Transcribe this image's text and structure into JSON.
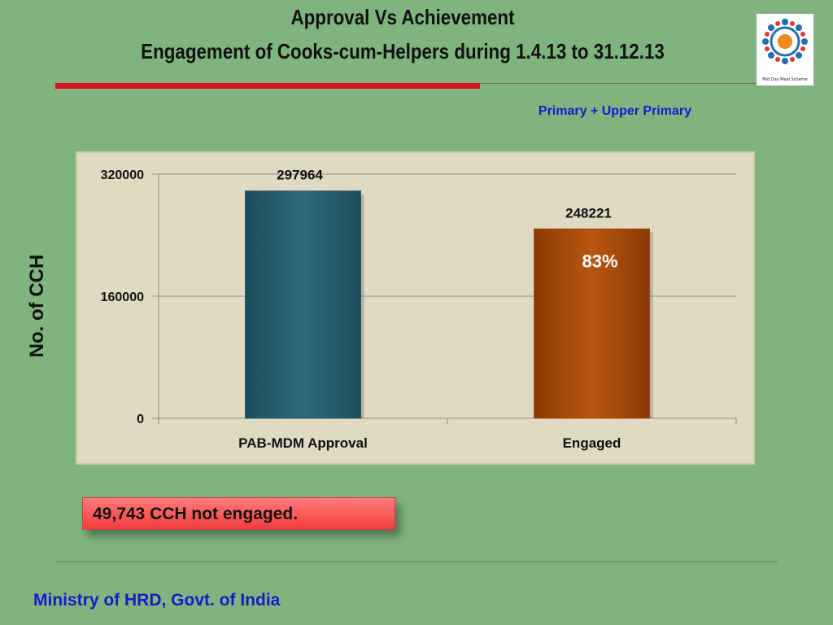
{
  "header": {
    "title_line1": "Approval Vs Achievement",
    "title_line2": "Engagement  of Cooks-cum-Helpers  during 1.4.13 to 31.12.13",
    "logo_caption": "Mid Day Meal Scheme"
  },
  "subtitle": "Primary + Upper Primary",
  "chart_data": {
    "type": "bar",
    "title": "",
    "ylabel": "No. of CCH",
    "xlabel": "",
    "categories": [
      "PAB-MDM Approval",
      "Engaged"
    ],
    "values": [
      297964,
      248221
    ],
    "data_labels": [
      "297964",
      "248221"
    ],
    "bar_colors": [
      "#265f70",
      "#a84b0b"
    ],
    "ylim": [
      0,
      320000
    ],
    "yticks": [
      0,
      160000,
      320000
    ],
    "ytick_labels": [
      "0",
      "160000",
      "320000"
    ],
    "grid": true,
    "annotation": "83%"
  },
  "callout": "49,743 CCH not engaged.",
  "footer": "Ministry of HRD, Govt. of India",
  "colors": {
    "background": "#7fb47e",
    "accent_red": "#d7121f",
    "footer_blue": "#1a1acc",
    "plot_bg": "#e0dac3"
  }
}
